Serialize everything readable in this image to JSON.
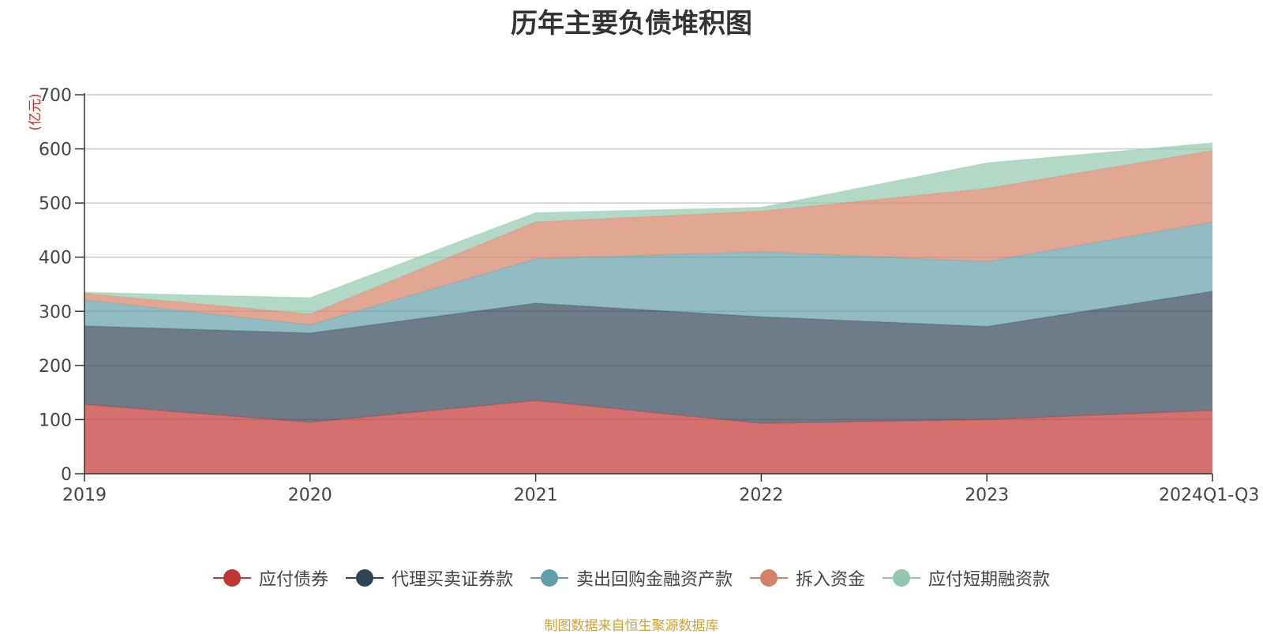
{
  "chart_data": {
    "type": "area",
    "stacked": true,
    "title": "历年主要负债堆积图",
    "ylabel": "(亿元)",
    "ylim": [
      0,
      700
    ],
    "yticks": [
      0,
      100,
      200,
      300,
      400,
      500,
      600,
      700
    ],
    "categories": [
      "2019",
      "2020",
      "2021",
      "2022",
      "2023",
      "2024Q1-Q3"
    ],
    "grid": true,
    "legend_position": "bottom",
    "series": [
      {
        "name": "应付债券",
        "color": "#c23531",
        "values": [
          128,
          95,
          135,
          93,
          100,
          117
        ]
      },
      {
        "name": "代理买卖证券款",
        "color": "#2f4554",
        "values": [
          145,
          165,
          180,
          197,
          172,
          220
        ]
      },
      {
        "name": "卖出回购金融资产款",
        "color": "#61a0a8",
        "values": [
          48,
          15,
          82,
          120,
          120,
          128
        ]
      },
      {
        "name": "拆入资金",
        "color": "#d48265",
        "values": [
          12,
          20,
          68,
          75,
          135,
          132
        ]
      },
      {
        "name": "应付短期融资款",
        "color": "#91c7ae",
        "values": [
          2,
          30,
          17,
          7,
          47,
          14
        ]
      }
    ]
  },
  "source_note": "制图数据来自恒生聚源数据库"
}
